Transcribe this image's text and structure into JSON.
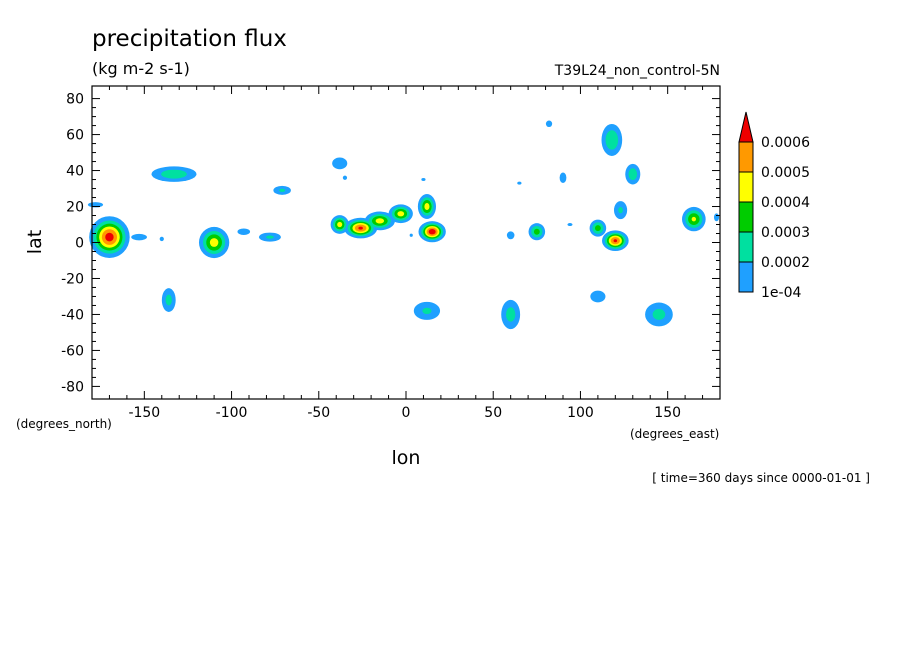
{
  "chart_data": {
    "type": "heatmap",
    "title": "precipitation flux",
    "subtitle": "(kg m-2 s-1)",
    "dataset_label": "T39L24_non_control-5N",
    "xlabel": "lon",
    "ylabel": "lat",
    "x_units": "(degrees_east)",
    "y_units": "(degrees_north)",
    "time_label": "[ time=360 days since 0000-01-01 ]",
    "xlim": [
      -180,
      180
    ],
    "ylim": [
      -87,
      87
    ],
    "x_ticks": [
      -150,
      -100,
      -50,
      0,
      50,
      100,
      150
    ],
    "y_ticks": [
      -80,
      -60,
      -40,
      -20,
      0,
      20,
      40,
      60,
      80
    ],
    "x_tick_labels": [
      "-150",
      "-100",
      "-50",
      "0",
      "50",
      "100",
      "150"
    ],
    "y_tick_labels": [
      "-80",
      "-60",
      "-40",
      "-20",
      "0",
      "20",
      "40",
      "60",
      "80"
    ],
    "grid": false,
    "colorbar": {
      "placement": "right",
      "levels": [
        0.0001,
        0.0002,
        0.0003,
        0.0004,
        0.0005,
        0.0006
      ],
      "labels": [
        "1e-04",
        "0.0002",
        "0.0003",
        "0.0004",
        "0.0005",
        "0.0006"
      ],
      "colors": [
        "#1fa0ff",
        "#00e0a0",
        "#00cc00",
        "#ffff00",
        "#ff9900",
        "#ee0000"
      ],
      "extend": "max"
    },
    "cells": [
      {
        "lon": -170,
        "lat": 3,
        "peak": 0.00065,
        "sx": 6,
        "sy": 6
      },
      {
        "lon": -178,
        "lat": 21,
        "peak": 0.00013,
        "sx": 6,
        "sy": 2
      },
      {
        "lon": -153,
        "lat": 3,
        "peak": 0.00015,
        "sx": 5,
        "sy": 2
      },
      {
        "lon": -140,
        "lat": 2,
        "peak": 0.00012,
        "sx": 2,
        "sy": 2
      },
      {
        "lon": -133,
        "lat": 38,
        "peak": 0.00028,
        "sx": 9,
        "sy": 3
      },
      {
        "lon": -110,
        "lat": 0,
        "peak": 0.00045,
        "sx": 5,
        "sy": 5
      },
      {
        "lon": -93,
        "lat": 6,
        "peak": 0.00015,
        "sx": 4,
        "sy": 2
      },
      {
        "lon": -78,
        "lat": 3,
        "peak": 0.00022,
        "sx": 5,
        "sy": 2
      },
      {
        "lon": -71,
        "lat": 29,
        "peak": 0.00022,
        "sx": 4,
        "sy": 2
      },
      {
        "lon": -38,
        "lat": 44,
        "peak": 0.00018,
        "sx": 4,
        "sy": 3
      },
      {
        "lon": -38,
        "lat": 10,
        "peak": 0.00045,
        "sx": 3,
        "sy": 3
      },
      {
        "lon": -26,
        "lat": 8,
        "peak": 0.00062,
        "sx": 5,
        "sy": 3
      },
      {
        "lon": -15,
        "lat": 12,
        "peak": 0.00045,
        "sx": 5,
        "sy": 3
      },
      {
        "lon": -3,
        "lat": 16,
        "peak": 0.00045,
        "sx": 4,
        "sy": 3
      },
      {
        "lon": 12,
        "lat": 20,
        "peak": 0.00045,
        "sx": 3,
        "sy": 4
      },
      {
        "lon": 15,
        "lat": 6,
        "peak": 0.00068,
        "sx": 4,
        "sy": 3
      },
      {
        "lon": -136,
        "lat": -32,
        "peak": 0.00024,
        "sx": 3,
        "sy": 5
      },
      {
        "lon": 12,
        "lat": -38,
        "peak": 0.00022,
        "sx": 6,
        "sy": 4
      },
      {
        "lon": 60,
        "lat": -40,
        "peak": 0.00025,
        "sx": 4,
        "sy": 6
      },
      {
        "lon": 75,
        "lat": 6,
        "peak": 0.00035,
        "sx": 3,
        "sy": 3
      },
      {
        "lon": 60,
        "lat": 4,
        "peak": 0.00018,
        "sx": 2,
        "sy": 2
      },
      {
        "lon": 110,
        "lat": 8,
        "peak": 0.00035,
        "sx": 3,
        "sy": 3
      },
      {
        "lon": 120,
        "lat": 1,
        "peak": 0.00062,
        "sx": 4,
        "sy": 3
      },
      {
        "lon": 118,
        "lat": 57,
        "peak": 0.0003,
        "sx": 4,
        "sy": 6
      },
      {
        "lon": 130,
        "lat": 38,
        "peak": 0.00028,
        "sx": 3,
        "sy": 4
      },
      {
        "lon": 165,
        "lat": 13,
        "peak": 0.00042,
        "sx": 4,
        "sy": 4
      },
      {
        "lon": 110,
        "lat": -30,
        "peak": 0.00018,
        "sx": 4,
        "sy": 3
      },
      {
        "lon": 145,
        "lat": -40,
        "peak": 0.00024,
        "sx": 6,
        "sy": 5
      },
      {
        "lon": 82,
        "lat": 66,
        "peak": 0.00015,
        "sx": 2,
        "sy": 2
      },
      {
        "lon": 90,
        "lat": 36,
        "peak": 0.00016,
        "sx": 2,
        "sy": 3
      },
      {
        "lon": 10,
        "lat": 35,
        "peak": 0.00012,
        "sx": 2,
        "sy": 1
      },
      {
        "lon": -35,
        "lat": 36,
        "peak": 0.00012,
        "sx": 2,
        "sy": 2
      },
      {
        "lon": 65,
        "lat": 33,
        "peak": 0.00012,
        "sx": 2,
        "sy": 1
      },
      {
        "lon": 94,
        "lat": 10,
        "peak": 0.00013,
        "sx": 2,
        "sy": 1
      },
      {
        "lon": 3,
        "lat": 4,
        "peak": 0.00012,
        "sx": 1.5,
        "sy": 1.5
      },
      {
        "lon": 178,
        "lat": 14,
        "peak": 0.00013,
        "sx": 2,
        "sy": 3
      },
      {
        "lon": 123,
        "lat": 18,
        "peak": 0.00022,
        "sx": 3,
        "sy": 4
      }
    ]
  }
}
